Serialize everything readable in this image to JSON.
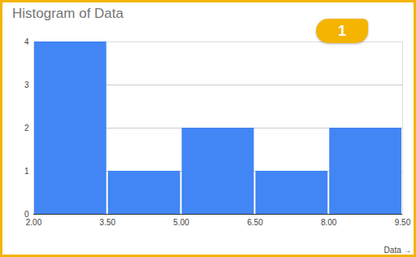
{
  "chart_data": {
    "type": "histogram",
    "title": "Histogram of Data",
    "x_label": "Data",
    "bins": [
      2,
      3.5,
      5,
      6.5,
      8,
      9.5
    ],
    "values": [
      4,
      1,
      2,
      1,
      2
    ],
    "color": "#4285f4",
    "xlim": [
      2,
      9.5
    ],
    "xticks": [
      {
        "value": 2,
        "label": "2.00"
      },
      {
        "value": 3.5,
        "label": "3.50"
      },
      {
        "value": 5,
        "label": "5.00"
      },
      {
        "value": 6.5,
        "label": "6.50"
      },
      {
        "value": 8,
        "label": "8.00"
      },
      {
        "value": 9.5,
        "label": "9.50"
      }
    ],
    "ylim": [
      0,
      4
    ],
    "yticks": [
      0,
      1,
      2,
      3,
      4
    ],
    "grid": true,
    "annotations": [
      "1"
    ]
  }
}
